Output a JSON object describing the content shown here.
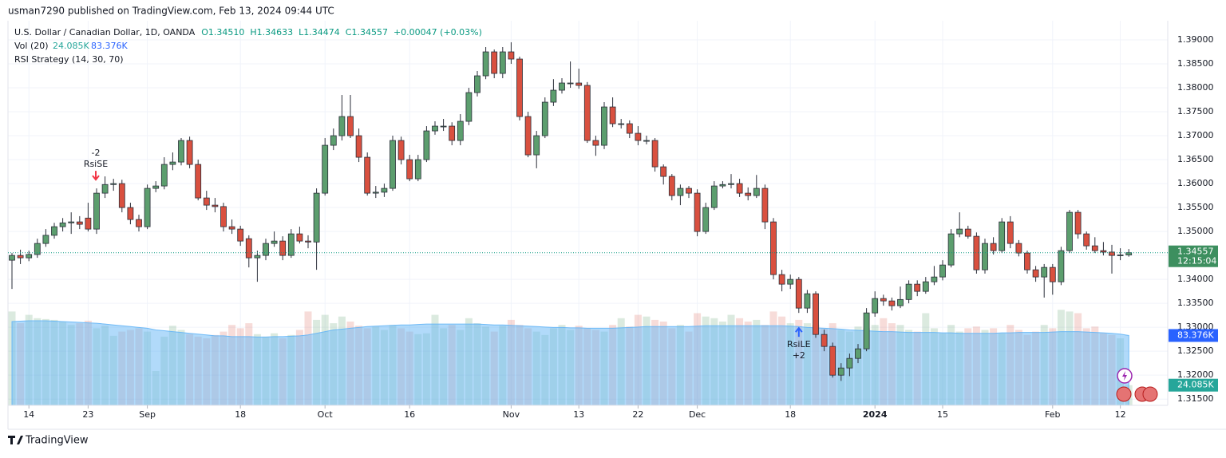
{
  "chart_data": {
    "type": "candlestick",
    "publisher": "usman7290 published on TradingView.com, Feb 13, 2024 09:44 UTC",
    "title": "U.S. Dollar / Canadian Dollar, 1D, OANDA",
    "ohlc_legend": [
      "O1.34510",
      "H1.34633",
      "L1.34474",
      "C1.34557",
      "+0.00047 (+0.03%)"
    ],
    "vol_legend": {
      "name": "Vol (20)",
      "last": "24.085K",
      "ma": "83.376K"
    },
    "indicator": "RSI Strategy (14, 30, 70)",
    "footer": "TradingView",
    "up_color": "#5c9e6e",
    "down_color": "#d9503f",
    "ylim": [
      1.3137,
      1.394
    ],
    "yticks": [
      {
        "value": 1.315,
        "label": "1.31500"
      },
      {
        "value": 1.32,
        "label": "1.32000"
      },
      {
        "value": 1.325,
        "label": "1.32500"
      },
      {
        "value": 1.33,
        "label": "1.33000"
      },
      {
        "value": 1.335,
        "label": "1.33500"
      },
      {
        "value": 1.34,
        "label": "1.34000"
      },
      {
        "value": 1.345,
        "label": "1.34500"
      },
      {
        "value": 1.35,
        "label": "1.35000"
      },
      {
        "value": 1.355,
        "label": "1.35500"
      },
      {
        "value": 1.36,
        "label": "1.36000"
      },
      {
        "value": 1.365,
        "label": "1.36500"
      },
      {
        "value": 1.37,
        "label": "1.37000"
      },
      {
        "value": 1.375,
        "label": "1.37500"
      },
      {
        "value": 1.38,
        "label": "1.38000"
      },
      {
        "value": 1.385,
        "label": "1.38500"
      },
      {
        "value": 1.39,
        "label": "1.39000"
      }
    ],
    "xticks": [
      {
        "value": 2,
        "label": "14"
      },
      {
        "value": 9,
        "label": "23"
      },
      {
        "value": 16,
        "label": "Sep"
      },
      {
        "value": 27,
        "label": "18"
      },
      {
        "value": 37,
        "label": "Oct"
      },
      {
        "value": 47,
        "label": "16"
      },
      {
        "value": 59,
        "label": "Nov"
      },
      {
        "value": 67,
        "label": "13"
      },
      {
        "value": 74,
        "label": "22"
      },
      {
        "value": 81,
        "label": "Dec"
      },
      {
        "value": 92,
        "label": "18"
      },
      {
        "value": 102,
        "label": "2024"
      },
      {
        "value": 110,
        "label": "15"
      },
      {
        "value": 123,
        "label": "Feb"
      },
      {
        "value": 131,
        "label": "12"
      }
    ],
    "last_price": {
      "value": 1.34557,
      "label": "1.34557",
      "countdown": "12:15:04"
    },
    "signals": [
      {
        "name": "RsiSE",
        "qty": "-2",
        "bar": 10
      },
      {
        "name": "RsiLE",
        "qty": "+2",
        "bar": 93
      }
    ],
    "ohlc": [
      [
        1.344,
        1.3455,
        1.338,
        1.345
      ],
      [
        1.345,
        1.3462,
        1.3432,
        1.3445
      ],
      [
        1.3445,
        1.346,
        1.3438,
        1.3452
      ],
      [
        1.3452,
        1.3485,
        1.3445,
        1.3475
      ],
      [
        1.3475,
        1.3505,
        1.3468,
        1.3492
      ],
      [
        1.3492,
        1.3518,
        1.3485,
        1.351
      ],
      [
        1.351,
        1.3528,
        1.35,
        1.3518
      ],
      [
        1.3518,
        1.354,
        1.3495,
        1.352
      ],
      [
        1.352,
        1.3532,
        1.3505,
        1.3515
      ],
      [
        1.3528,
        1.356,
        1.35,
        1.3505
      ],
      [
        1.3505,
        1.359,
        1.3495,
        1.358
      ],
      [
        1.358,
        1.3615,
        1.357,
        1.3598
      ],
      [
        1.3598,
        1.361,
        1.3585,
        1.36
      ],
      [
        1.36,
        1.3608,
        1.354,
        1.355
      ],
      [
        1.355,
        1.356,
        1.3515,
        1.3525
      ],
      [
        1.3525,
        1.3535,
        1.35,
        1.351
      ],
      [
        1.351,
        1.3598,
        1.3505,
        1.359
      ],
      [
        1.359,
        1.3605,
        1.3582,
        1.3595
      ],
      [
        1.3595,
        1.3655,
        1.3588,
        1.364
      ],
      [
        1.364,
        1.3665,
        1.3628,
        1.3645
      ],
      [
        1.3645,
        1.3695,
        1.3638,
        1.369
      ],
      [
        1.369,
        1.3698,
        1.3632,
        1.364
      ],
      [
        1.364,
        1.365,
        1.3565,
        1.357
      ],
      [
        1.357,
        1.3585,
        1.3545,
        1.3555
      ],
      [
        1.3555,
        1.357,
        1.354,
        1.3552
      ],
      [
        1.3552,
        1.356,
        1.35,
        1.351
      ],
      [
        1.351,
        1.3525,
        1.3495,
        1.3505
      ],
      [
        1.3505,
        1.3512,
        1.347,
        1.348
      ],
      [
        1.3485,
        1.3492,
        1.3425,
        1.3445
      ],
      [
        1.3445,
        1.346,
        1.3395,
        1.345
      ],
      [
        1.345,
        1.3485,
        1.344,
        1.3475
      ],
      [
        1.3475,
        1.35,
        1.3468,
        1.348
      ],
      [
        1.348,
        1.349,
        1.344,
        1.345
      ],
      [
        1.345,
        1.3505,
        1.3445,
        1.3495
      ],
      [
        1.3495,
        1.351,
        1.3475,
        1.348
      ],
      [
        1.348,
        1.3492,
        1.3465,
        1.3478
      ],
      [
        1.3478,
        1.359,
        1.342,
        1.358
      ],
      [
        1.358,
        1.3695,
        1.3575,
        1.368
      ],
      [
        1.368,
        1.3715,
        1.367,
        1.37
      ],
      [
        1.37,
        1.3785,
        1.369,
        1.374
      ],
      [
        1.374,
        1.3785,
        1.3695,
        1.37
      ],
      [
        1.37,
        1.3715,
        1.3645,
        1.3655
      ],
      [
        1.3655,
        1.3665,
        1.3575,
        1.358
      ],
      [
        1.358,
        1.3595,
        1.357,
        1.3582
      ],
      [
        1.3582,
        1.36,
        1.3572,
        1.359
      ],
      [
        1.359,
        1.37,
        1.3585,
        1.369
      ],
      [
        1.369,
        1.3698,
        1.364,
        1.365
      ],
      [
        1.365,
        1.366,
        1.3605,
        1.361
      ],
      [
        1.361,
        1.366,
        1.3605,
        1.365
      ],
      [
        1.365,
        1.372,
        1.3645,
        1.371
      ],
      [
        1.371,
        1.373,
        1.3702,
        1.372
      ],
      [
        1.372,
        1.3735,
        1.371,
        1.372
      ],
      [
        1.372,
        1.3728,
        1.368,
        1.369
      ],
      [
        1.369,
        1.3745,
        1.368,
        1.373
      ],
      [
        1.373,
        1.38,
        1.3722,
        1.379
      ],
      [
        1.379,
        1.3835,
        1.3782,
        1.3825
      ],
      [
        1.3825,
        1.3885,
        1.3818,
        1.3875
      ],
      [
        1.3875,
        1.388,
        1.382,
        1.383
      ],
      [
        1.383,
        1.3885,
        1.382,
        1.3875
      ],
      [
        1.3875,
        1.3895,
        1.385,
        1.386
      ],
      [
        1.386,
        1.3865,
        1.3732,
        1.374
      ],
      [
        1.374,
        1.375,
        1.3655,
        1.366
      ],
      [
        1.366,
        1.371,
        1.3632,
        1.37
      ],
      [
        1.37,
        1.378,
        1.3695,
        1.377
      ],
      [
        1.377,
        1.3818,
        1.3762,
        1.3795
      ],
      [
        1.3795,
        1.382,
        1.3788,
        1.381
      ],
      [
        1.381,
        1.3855,
        1.38,
        1.381
      ],
      [
        1.381,
        1.384,
        1.3798,
        1.3805
      ],
      [
        1.3805,
        1.3812,
        1.3685,
        1.369
      ],
      [
        1.369,
        1.37,
        1.3658,
        1.368
      ],
      [
        1.368,
        1.377,
        1.3672,
        1.376
      ],
      [
        1.376,
        1.378,
        1.3718,
        1.3725
      ],
      [
        1.3725,
        1.3735,
        1.3715,
        1.3725
      ],
      [
        1.3725,
        1.3732,
        1.3695,
        1.3705
      ],
      [
        1.3705,
        1.372,
        1.368,
        1.369
      ],
      [
        1.369,
        1.37,
        1.3682,
        1.369
      ],
      [
        1.369,
        1.3695,
        1.3625,
        1.3635
      ],
      [
        1.3635,
        1.364,
        1.3598,
        1.3615
      ],
      [
        1.3615,
        1.362,
        1.3565,
        1.3575
      ],
      [
        1.3575,
        1.3598,
        1.3555,
        1.359
      ],
      [
        1.359,
        1.3595,
        1.357,
        1.358
      ],
      [
        1.358,
        1.3588,
        1.349,
        1.35
      ],
      [
        1.35,
        1.356,
        1.3495,
        1.355
      ],
      [
        1.355,
        1.3605,
        1.3545,
        1.3595
      ],
      [
        1.3595,
        1.3605,
        1.359,
        1.3598
      ],
      [
        1.3598,
        1.362,
        1.359,
        1.36
      ],
      [
        1.36,
        1.361,
        1.3572,
        1.358
      ],
      [
        1.358,
        1.3592,
        1.3565,
        1.3575
      ],
      [
        1.3575,
        1.3618,
        1.357,
        1.359
      ],
      [
        1.359,
        1.3598,
        1.3505,
        1.352
      ],
      [
        1.352,
        1.3528,
        1.34,
        1.341
      ],
      [
        1.341,
        1.342,
        1.3375,
        1.339
      ],
      [
        1.339,
        1.341,
        1.338,
        1.34
      ],
      [
        1.34,
        1.3405,
        1.333,
        1.334
      ],
      [
        1.334,
        1.3378,
        1.333,
        1.337
      ],
      [
        1.337,
        1.3375,
        1.3278,
        1.3285
      ],
      [
        1.3285,
        1.3295,
        1.325,
        1.326
      ],
      [
        1.326,
        1.3268,
        1.3195,
        1.32
      ],
      [
        1.32,
        1.3225,
        1.3188,
        1.3215
      ],
      [
        1.3215,
        1.3245,
        1.3198,
        1.3235
      ],
      [
        1.3235,
        1.3265,
        1.3225,
        1.3255
      ],
      [
        1.3255,
        1.334,
        1.325,
        1.333
      ],
      [
        1.333,
        1.3375,
        1.3322,
        1.336
      ],
      [
        1.336,
        1.3368,
        1.3345,
        1.3355
      ],
      [
        1.3355,
        1.3362,
        1.3335,
        1.3345
      ],
      [
        1.3345,
        1.3385,
        1.334,
        1.3358
      ],
      [
        1.3358,
        1.3398,
        1.335,
        1.339
      ],
      [
        1.339,
        1.3398,
        1.3365,
        1.3375
      ],
      [
        1.3375,
        1.3405,
        1.337,
        1.3395
      ],
      [
        1.3395,
        1.3428,
        1.3388,
        1.3405
      ],
      [
        1.3405,
        1.344,
        1.3398,
        1.343
      ],
      [
        1.343,
        1.3505,
        1.3425,
        1.3495
      ],
      [
        1.3495,
        1.354,
        1.3488,
        1.3505
      ],
      [
        1.3505,
        1.3512,
        1.3485,
        1.349
      ],
      [
        1.349,
        1.3498,
        1.3412,
        1.342
      ],
      [
        1.342,
        1.3485,
        1.3412,
        1.3475
      ],
      [
        1.3475,
        1.3488,
        1.3452,
        1.346
      ],
      [
        1.346,
        1.3528,
        1.3455,
        1.352
      ],
      [
        1.352,
        1.3532,
        1.3465,
        1.3475
      ],
      [
        1.3475,
        1.3482,
        1.3448,
        1.3455
      ],
      [
        1.3455,
        1.346,
        1.3412,
        1.342
      ],
      [
        1.342,
        1.3428,
        1.3395,
        1.3405
      ],
      [
        1.3405,
        1.3432,
        1.3362,
        1.3425
      ],
      [
        1.3425,
        1.3432,
        1.3368,
        1.3395
      ],
      [
        1.3395,
        1.3468,
        1.3388,
        1.346
      ],
      [
        1.346,
        1.3545,
        1.3455,
        1.354
      ],
      [
        1.354,
        1.3545,
        1.3485,
        1.3495
      ],
      [
        1.3495,
        1.35,
        1.3462,
        1.347
      ],
      [
        1.347,
        1.3488,
        1.3455,
        1.346
      ],
      [
        1.346,
        1.3478,
        1.345,
        1.3457
      ],
      [
        1.3457,
        1.3472,
        1.3412,
        1.345
      ],
      [
        1.345,
        1.3465,
        1.344,
        1.3451
      ],
      [
        1.3451,
        1.34633,
        1.34474,
        1.34557
      ]
    ],
    "volume_lim": [
      0,
      120
    ],
    "volume": [
      112,
      98,
      108,
      104,
      103,
      102,
      100,
      96,
      98,
      101,
      92,
      95,
      83,
      88,
      90,
      92,
      88,
      41,
      82,
      95,
      90,
      85,
      82,
      80,
      84,
      88,
      96,
      92,
      98,
      85,
      82,
      86,
      80,
      84,
      90,
      112,
      102,
      108,
      98,
      106,
      100,
      95,
      92,
      94,
      90,
      96,
      92,
      88,
      85,
      86,
      108,
      92,
      96,
      90,
      104,
      98,
      94,
      88,
      95,
      102,
      96,
      92,
      88,
      84,
      92,
      96,
      90,
      95,
      92,
      90,
      88,
      96,
      104,
      94,
      108,
      106,
      102,
      100,
      92,
      96,
      88,
      110,
      106,
      104,
      100,
      108,
      104,
      100,
      102,
      96,
      112,
      106,
      98,
      102,
      98,
      96,
      92,
      98,
      90,
      88,
      94,
      92,
      96,
      104,
      98,
      96,
      90,
      88,
      110,
      92,
      86,
      96,
      88,
      92,
      94,
      90,
      92,
      86,
      96,
      90,
      84,
      88,
      96,
      92,
      114,
      112,
      110,
      92,
      94,
      86,
      84,
      80,
      24.085
    ],
    "volume_ma": [
      100,
      100.5,
      101,
      101,
      101,
      100.5,
      100,
      99.5,
      99,
      98.5,
      98,
      97,
      96,
      95,
      94,
      93,
      92,
      90,
      89,
      88,
      87,
      86,
      85,
      84,
      83,
      83,
      82,
      82,
      82,
      81.5,
      81.5,
      82,
      82,
      82.5,
      83,
      84,
      86,
      88,
      90,
      91,
      92,
      93,
      94,
      94.5,
      95,
      95.5,
      96,
      96,
      96.5,
      97,
      97,
      97,
      97,
      97,
      97,
      97,
      96.5,
      96,
      96,
      95.5,
      95,
      94.5,
      94,
      93.5,
      93,
      93,
      92.5,
      92.5,
      92,
      92,
      92,
      92,
      92.5,
      93,
      93.5,
      94,
      94,
      94,
      94,
      94,
      94,
      94.5,
      95,
      95,
      95,
      95,
      95,
      95,
      95,
      95,
      95,
      95,
      94.5,
      94,
      93,
      92.5,
      92,
      91.5,
      91,
      90,
      89.5,
      89,
      88.5,
      88,
      88,
      87.5,
      87,
      87,
      87,
      87,
      86.5,
      86.5,
      86,
      86,
      86,
      86,
      86,
      86.5,
      86.5,
      87,
      87,
      87,
      87,
      87.5,
      88,
      88,
      88,
      87.5,
      87,
      86.5,
      86,
      85,
      83.376
    ]
  }
}
